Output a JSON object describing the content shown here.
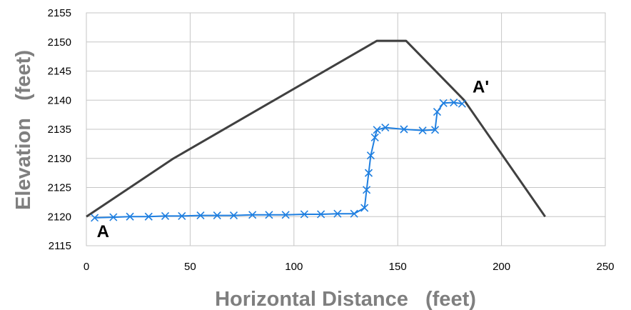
{
  "chart_data": {
    "type": "line",
    "title": "",
    "xlabel": "Horizontal Distance   (feet)",
    "ylabel": "Elevation   (feet)",
    "xlim": [
      0,
      250
    ],
    "ylim": [
      2115,
      2155
    ],
    "xticks": [
      0,
      50,
      100,
      150,
      200,
      250
    ],
    "yticks": [
      2115,
      2120,
      2125,
      2130,
      2135,
      2140,
      2145,
      2150,
      2155
    ],
    "grid": true,
    "legend": "none",
    "series": [
      {
        "style": "line",
        "color": "#404040",
        "points": [
          [
            0,
            2120
          ],
          [
            42,
            2130
          ],
          [
            140,
            2150.2
          ],
          [
            154,
            2150.2
          ],
          [
            182,
            2140
          ],
          [
            221,
            2120
          ]
        ]
      },
      {
        "style": "line-x-markers",
        "color": "#1f7fe0",
        "points": [
          [
            4,
            2119.8
          ],
          [
            13,
            2119.9
          ],
          [
            21,
            2120
          ],
          [
            30,
            2120
          ],
          [
            38,
            2120.1
          ],
          [
            46,
            2120.1
          ],
          [
            55,
            2120.2
          ],
          [
            63,
            2120.2
          ],
          [
            71,
            2120.2
          ],
          [
            80,
            2120.3
          ],
          [
            88,
            2120.3
          ],
          [
            96,
            2120.3
          ],
          [
            105,
            2120.4
          ],
          [
            113,
            2120.4
          ],
          [
            121,
            2120.5
          ],
          [
            129,
            2120.5
          ],
          [
            134,
            2121.5
          ],
          [
            135,
            2124.6
          ],
          [
            136,
            2127.5
          ],
          [
            137,
            2130.5
          ],
          [
            139,
            2133.6
          ],
          [
            140,
            2134.9
          ],
          [
            144,
            2135.3
          ],
          [
            153,
            2135
          ],
          [
            162,
            2134.8
          ],
          [
            168,
            2134.9
          ],
          [
            169,
            2138
          ],
          [
            172,
            2139.5
          ],
          [
            177,
            2139.6
          ],
          [
            181,
            2139.4
          ]
        ]
      }
    ],
    "annotations": [
      {
        "text": "A",
        "x": 8,
        "y": 2116.5
      },
      {
        "text": "A'",
        "x": 190,
        "y": 2141.3
      }
    ]
  }
}
